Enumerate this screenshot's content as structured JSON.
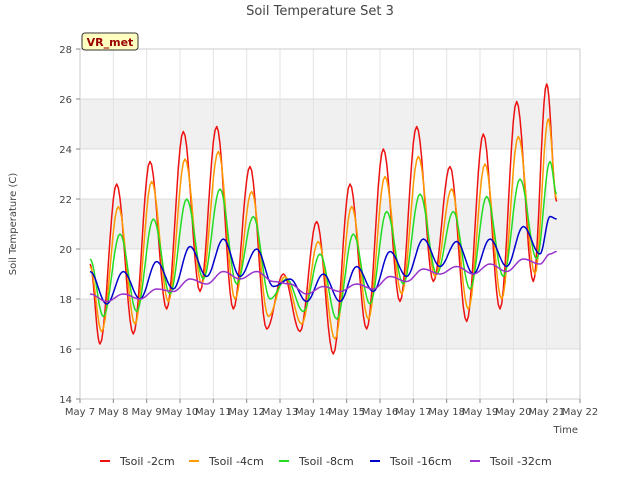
{
  "chart_data": {
    "type": "line",
    "title": "Soil Temperature Set 3",
    "xlabel": "Time",
    "ylabel": "Soil Temperature (C)",
    "badge": "VR_met",
    "xlim": [
      7,
      22
    ],
    "ylim": [
      14,
      28
    ],
    "y_ticks": [
      14,
      16,
      18,
      20,
      22,
      24,
      26,
      28
    ],
    "x_tick_values": [
      7,
      8,
      9,
      10,
      11,
      12,
      13,
      14,
      15,
      16,
      17,
      18,
      19,
      20,
      21,
      22
    ],
    "x_tick_labels": [
      "May 7",
      "May 8",
      "May 9",
      "May 10",
      "May 11",
      "May 12",
      "May 13",
      "May 14",
      "May 15",
      "May 16",
      "May 17",
      "May 18",
      "May 19",
      "May 20",
      "May 21",
      "May 22"
    ],
    "grid": true,
    "banded_background": true,
    "legend_position": "bottom",
    "series": [
      {
        "name": "Tsoil -2cm",
        "color": "#ee1111",
        "x": [
          7.3,
          7.6,
          8.1,
          8.6,
          9.1,
          9.6,
          10.1,
          10.6,
          11.1,
          11.6,
          12.1,
          12.6,
          13.1,
          13.6,
          14.1,
          14.6,
          15.1,
          15.6,
          16.1,
          16.6,
          17.1,
          17.6,
          18.1,
          18.6,
          19.1,
          19.6,
          20.1,
          20.6,
          21.0,
          21.3
        ],
        "y": [
          19.4,
          16.2,
          22.6,
          16.6,
          23.5,
          17.6,
          24.7,
          18.3,
          24.9,
          17.6,
          23.3,
          16.8,
          19.0,
          16.7,
          21.1,
          15.8,
          22.6,
          16.8,
          24.0,
          17.9,
          24.9,
          18.7,
          23.3,
          17.1,
          24.6,
          17.6,
          25.9,
          18.7,
          26.6,
          21.9
        ]
      },
      {
        "name": "Tsoil -4cm",
        "color": "#ff9900",
        "x": [
          7.3,
          7.65,
          8.15,
          8.65,
          9.15,
          9.65,
          10.15,
          10.65,
          11.15,
          11.65,
          12.15,
          12.65,
          13.15,
          13.65,
          14.15,
          14.65,
          15.15,
          15.65,
          16.15,
          16.65,
          17.15,
          17.65,
          18.15,
          18.65,
          19.15,
          19.65,
          20.15,
          20.65,
          21.05,
          21.3
        ],
        "y": [
          19.3,
          16.7,
          21.7,
          17.0,
          22.7,
          17.9,
          23.6,
          18.6,
          23.9,
          18.0,
          22.3,
          17.3,
          18.9,
          17.0,
          20.3,
          16.4,
          21.7,
          17.2,
          22.9,
          18.2,
          23.7,
          18.9,
          22.4,
          17.6,
          23.4,
          18.0,
          24.5,
          19.0,
          25.2,
          22.0
        ]
      },
      {
        "name": "Tsoil -8cm",
        "color": "#22dd22",
        "x": [
          7.3,
          7.7,
          8.2,
          8.7,
          9.2,
          9.7,
          10.2,
          10.7,
          11.2,
          11.7,
          12.2,
          12.7,
          13.2,
          13.7,
          14.2,
          14.7,
          15.2,
          15.7,
          16.2,
          16.7,
          17.2,
          17.7,
          18.2,
          18.7,
          19.2,
          19.7,
          20.2,
          20.7,
          21.1,
          21.3
        ],
        "y": [
          19.6,
          17.3,
          20.6,
          17.5,
          21.2,
          18.2,
          22.0,
          18.8,
          22.4,
          18.6,
          21.3,
          18.0,
          18.8,
          17.5,
          19.8,
          17.2,
          20.6,
          17.8,
          21.5,
          18.6,
          22.2,
          19.0,
          21.5,
          18.4,
          22.1,
          18.9,
          22.8,
          19.6,
          23.5,
          22.2
        ]
      },
      {
        "name": "Tsoil -16cm",
        "color": "#0000cc",
        "x": [
          7.3,
          7.8,
          8.3,
          8.8,
          9.3,
          9.8,
          10.3,
          10.8,
          11.3,
          11.8,
          12.3,
          12.8,
          13.3,
          13.8,
          14.3,
          14.8,
          15.3,
          15.8,
          16.3,
          16.8,
          17.3,
          17.8,
          18.3,
          18.8,
          19.3,
          19.8,
          20.3,
          20.8,
          21.1,
          21.3
        ],
        "y": [
          19.1,
          17.8,
          19.1,
          18.0,
          19.5,
          18.4,
          20.1,
          18.9,
          20.4,
          18.9,
          20.0,
          18.5,
          18.8,
          17.9,
          19.0,
          17.9,
          19.3,
          18.3,
          19.9,
          18.9,
          20.4,
          19.3,
          20.3,
          19.0,
          20.4,
          19.3,
          20.9,
          19.8,
          21.3,
          21.2
        ]
      },
      {
        "name": "Tsoil -32cm",
        "color": "#9933cc",
        "x": [
          7.3,
          7.8,
          8.3,
          8.8,
          9.3,
          9.8,
          10.3,
          10.8,
          11.3,
          11.8,
          12.3,
          12.8,
          13.3,
          13.8,
          14.3,
          14.8,
          15.3,
          15.8,
          16.3,
          16.8,
          17.3,
          17.8,
          18.3,
          18.8,
          19.3,
          19.8,
          20.3,
          20.8,
          21.1,
          21.3
        ],
        "y": [
          18.2,
          17.9,
          18.2,
          18.0,
          18.4,
          18.3,
          18.8,
          18.6,
          19.1,
          18.8,
          19.1,
          18.7,
          18.6,
          18.2,
          18.5,
          18.3,
          18.6,
          18.4,
          18.9,
          18.7,
          19.2,
          19.0,
          19.3,
          19.0,
          19.4,
          19.1,
          19.6,
          19.4,
          19.8,
          19.9
        ]
      }
    ]
  }
}
